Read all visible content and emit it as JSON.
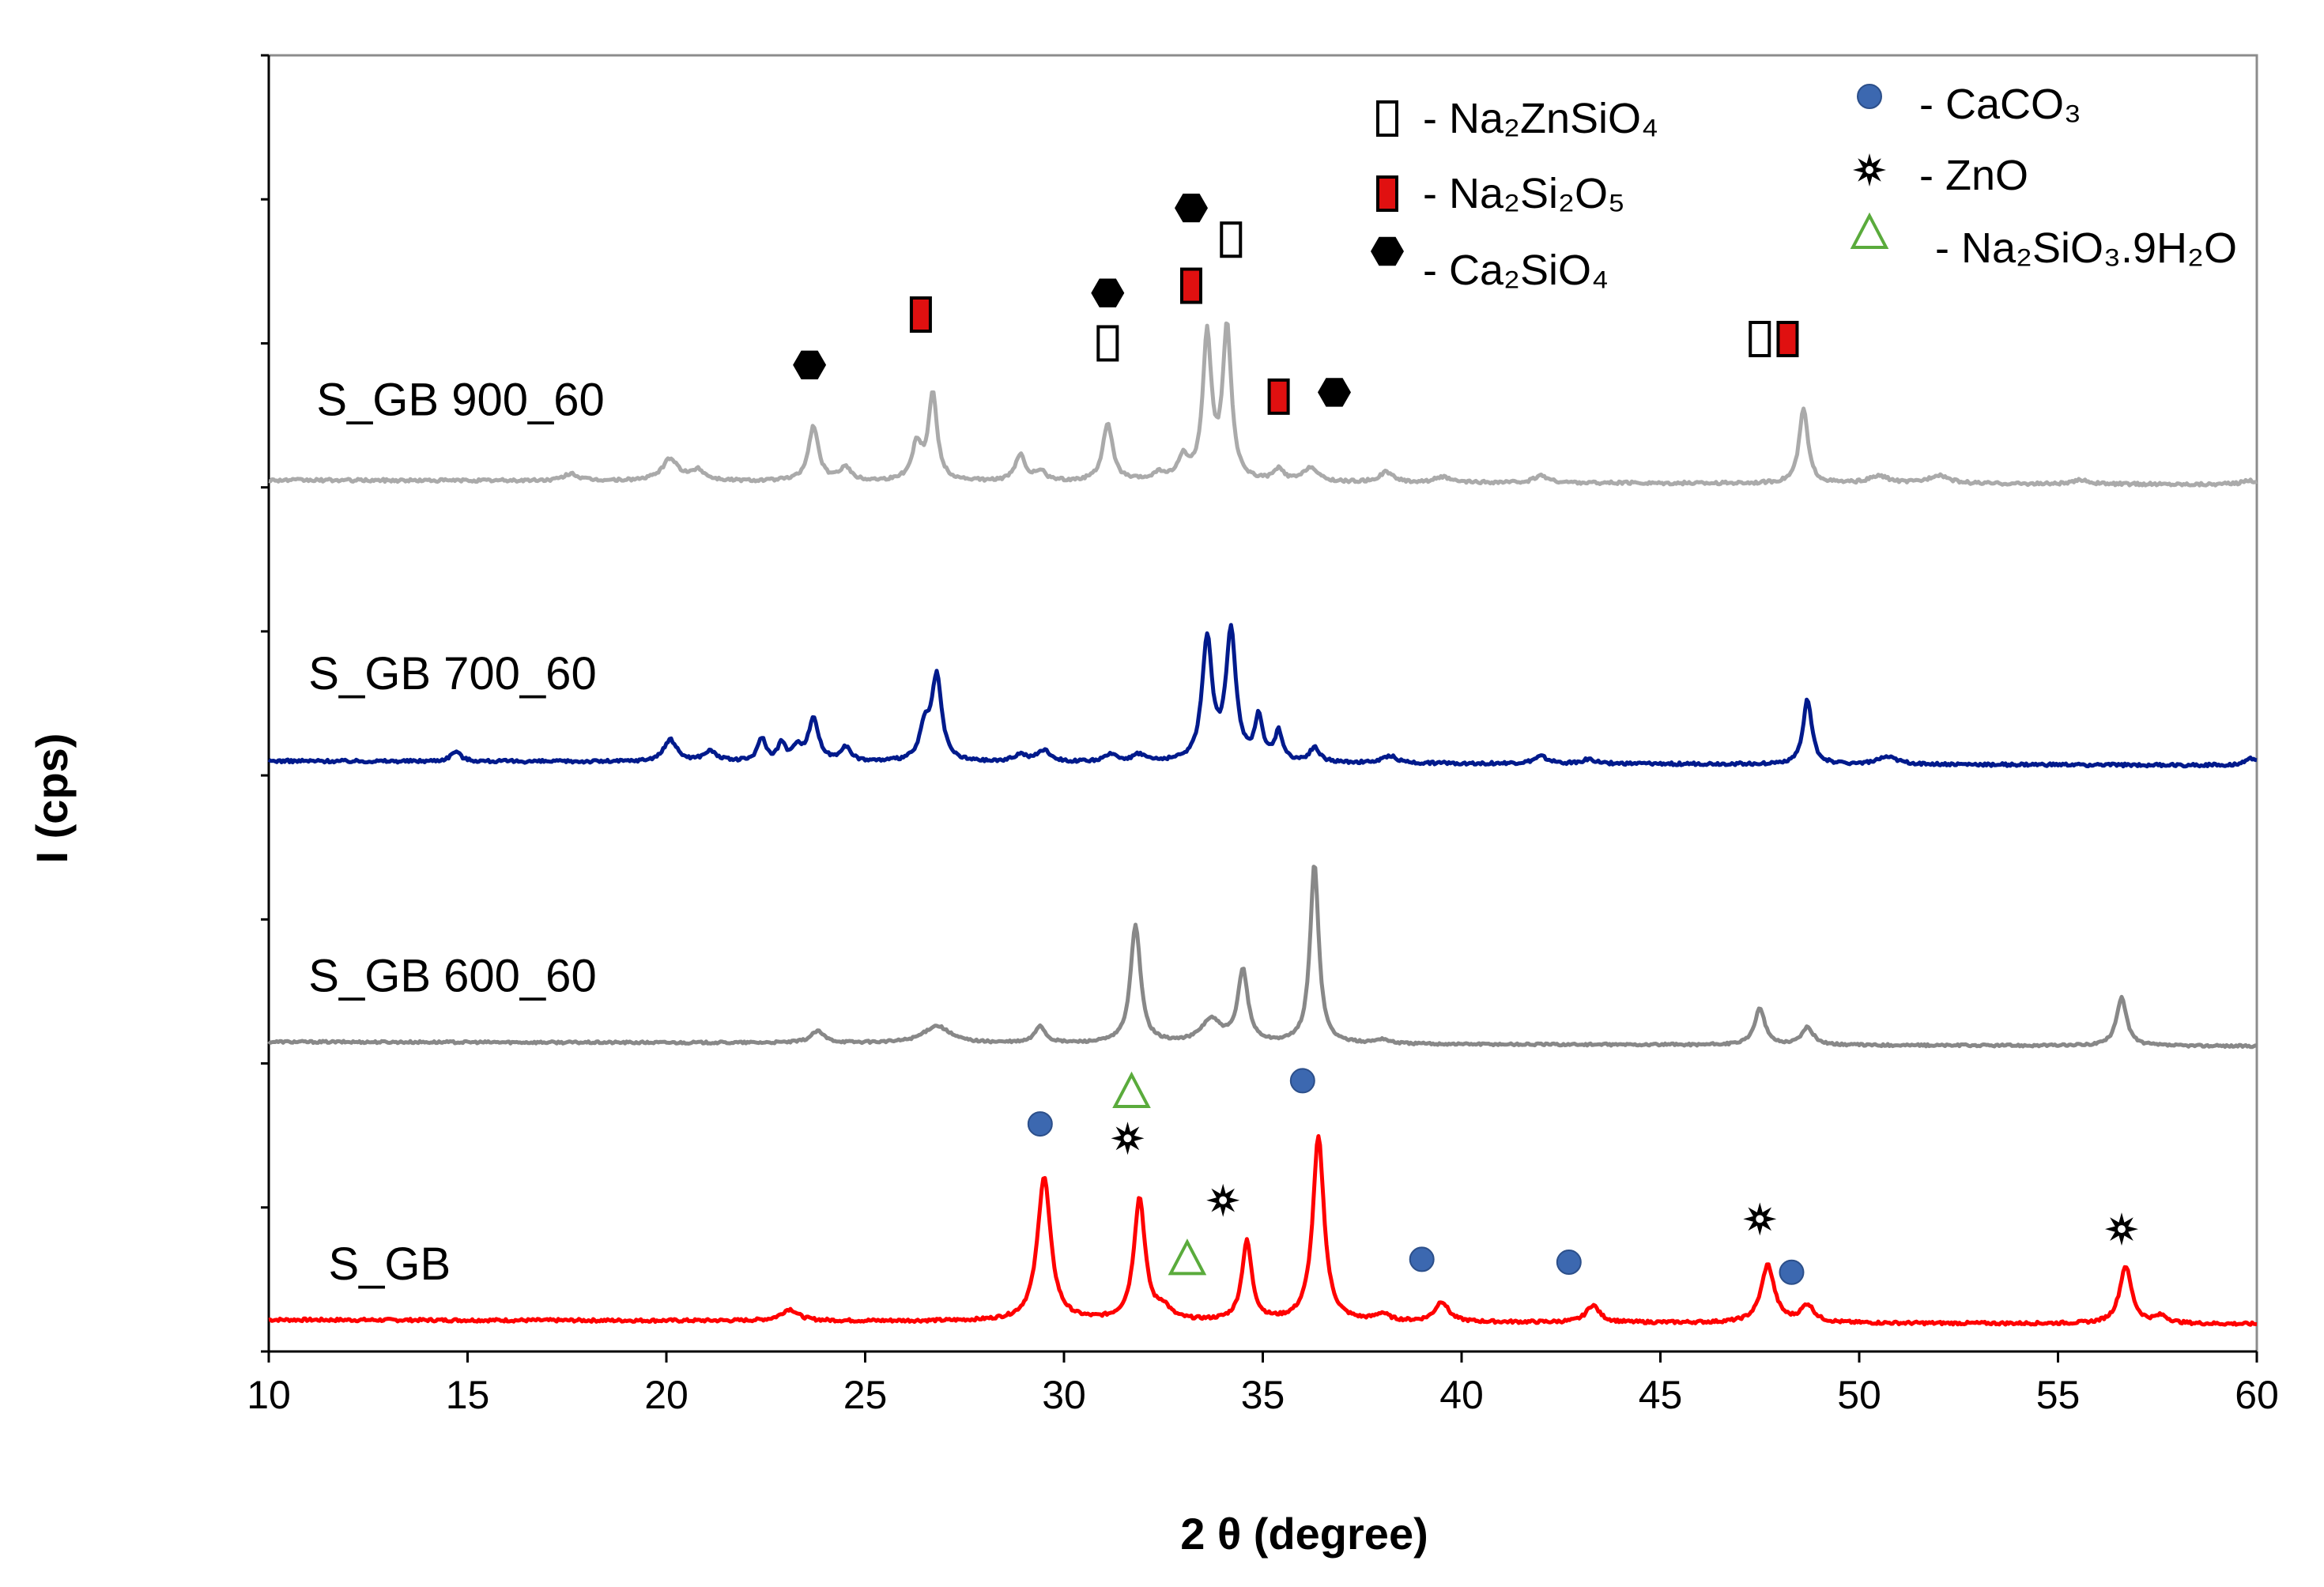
{
  "chart_data": {
    "type": "line",
    "title": "",
    "xlabel": "2 θ (degree)",
    "ylabel": "I (cps)",
    "xlim": [
      10,
      60
    ],
    "xticks": [
      10,
      15,
      20,
      25,
      30,
      35,
      40,
      45,
      50,
      55,
      60
    ],
    "ylim": [
      0,
      9
    ],
    "y_tick_count": 9,
    "y_tick_labels_shown": false,
    "grid": false,
    "legend_position": "top-right",
    "series": [
      {
        "name": "S_GB",
        "color": "#ff0000",
        "baseline": 0.22,
        "noise": 0.02,
        "peaks": [
          [
            23.1,
            0.08,
            0.25
          ],
          [
            29.5,
            1.0,
            0.2
          ],
          [
            31.9,
            0.85,
            0.17
          ],
          [
            32.5,
            0.08,
            0.2
          ],
          [
            34.6,
            0.55,
            0.15
          ],
          [
            36.4,
            1.28,
            0.17
          ],
          [
            38.0,
            0.05,
            0.2
          ],
          [
            39.5,
            0.14,
            0.2
          ],
          [
            43.3,
            0.12,
            0.2
          ],
          [
            47.7,
            0.4,
            0.2
          ],
          [
            48.7,
            0.12,
            0.2
          ],
          [
            56.7,
            0.4,
            0.18
          ],
          [
            57.6,
            0.05,
            0.2
          ]
        ]
      },
      {
        "name": "S_GB 600_60",
        "color": "#888888",
        "baseline": 2.15,
        "noise": 0.015,
        "peaks": [
          [
            23.8,
            0.08,
            0.2
          ],
          [
            26.8,
            0.12,
            0.4
          ],
          [
            29.4,
            0.12,
            0.15
          ],
          [
            31.8,
            0.82,
            0.15
          ],
          [
            33.7,
            0.16,
            0.3
          ],
          [
            34.5,
            0.5,
            0.15
          ],
          [
            36.3,
            1.25,
            0.13
          ],
          [
            38.0,
            0.03,
            0.2
          ],
          [
            47.5,
            0.26,
            0.15
          ],
          [
            48.7,
            0.12,
            0.18
          ],
          [
            56.6,
            0.34,
            0.15
          ]
        ]
      },
      {
        "name": "S_GB 700_60",
        "color": "#001a8c",
        "baseline": 4.1,
        "noise": 0.02,
        "peaks": [
          [
            14.7,
            0.07,
            0.15
          ],
          [
            20.1,
            0.15,
            0.2
          ],
          [
            21.1,
            0.07,
            0.2
          ],
          [
            22.4,
            0.16,
            0.12
          ],
          [
            22.9,
            0.12,
            0.12
          ],
          [
            23.3,
            0.1,
            0.12
          ],
          [
            23.7,
            0.3,
            0.15
          ],
          [
            24.5,
            0.1,
            0.15
          ],
          [
            26.5,
            0.22,
            0.15
          ],
          [
            26.8,
            0.58,
            0.15
          ],
          [
            28.9,
            0.05,
            0.2
          ],
          [
            29.5,
            0.08,
            0.2
          ],
          [
            31.2,
            0.05,
            0.2
          ],
          [
            31.9,
            0.05,
            0.2
          ],
          [
            33.6,
            0.85,
            0.15
          ],
          [
            34.2,
            0.9,
            0.15
          ],
          [
            34.9,
            0.3,
            0.12
          ],
          [
            35.4,
            0.2,
            0.12
          ],
          [
            36.3,
            0.1,
            0.15
          ],
          [
            38.2,
            0.05,
            0.2
          ],
          [
            42.0,
            0.05,
            0.2
          ],
          [
            43.2,
            0.03,
            0.2
          ],
          [
            48.7,
            0.45,
            0.13
          ],
          [
            50.7,
            0.05,
            0.3
          ],
          [
            59.9,
            0.05,
            0.2
          ]
        ]
      },
      {
        "name": "S_GB 900_60",
        "color": "#aaaaaa",
        "baseline": 6.05,
        "noise": 0.02,
        "peaks": [
          [
            17.6,
            0.05,
            0.2
          ],
          [
            20.1,
            0.15,
            0.25
          ],
          [
            20.8,
            0.07,
            0.2
          ],
          [
            23.7,
            0.38,
            0.15
          ],
          [
            24.5,
            0.1,
            0.15
          ],
          [
            26.3,
            0.25,
            0.15
          ],
          [
            26.7,
            0.6,
            0.13
          ],
          [
            28.9,
            0.18,
            0.15
          ],
          [
            29.4,
            0.07,
            0.15
          ],
          [
            31.1,
            0.4,
            0.15
          ],
          [
            32.4,
            0.05,
            0.2
          ],
          [
            33.0,
            0.15,
            0.15
          ],
          [
            33.6,
            1.0,
            0.13
          ],
          [
            34.1,
            1.05,
            0.13
          ],
          [
            35.4,
            0.08,
            0.15
          ],
          [
            36.2,
            0.1,
            0.2
          ],
          [
            38.1,
            0.07,
            0.2
          ],
          [
            39.5,
            0.04,
            0.2
          ],
          [
            42.0,
            0.05,
            0.2
          ],
          [
            48.6,
            0.52,
            0.13
          ],
          [
            50.5,
            0.05,
            0.3
          ],
          [
            52.0,
            0.06,
            0.3
          ],
          [
            55.6,
            0.03,
            0.2
          ],
          [
            59.8,
            0.03,
            0.2
          ]
        ]
      }
    ],
    "series_labels": [
      {
        "text": "S_GB",
        "x": 11.5,
        "y": 0.5
      },
      {
        "text": "S_GB 600_60",
        "x": 11.0,
        "y": 2.5
      },
      {
        "text": "S_GB 700_60",
        "x": 11.0,
        "y": 4.6
      },
      {
        "text": "S_GB 900_60",
        "x": 11.2,
        "y": 6.5
      }
    ],
    "phase_legend": [
      {
        "symbol": "open-rect",
        "label": "- Na₂ZnSiO₄"
      },
      {
        "symbol": "red-rect",
        "label": "- Na₂Si₂O₅"
      },
      {
        "symbol": "hexagon",
        "label": "- Ca₂SiO₄"
      },
      {
        "symbol": "blue-dot",
        "label": "- CaCO₃"
      },
      {
        "symbol": "star",
        "label": "-  ZnO"
      },
      {
        "symbol": "triangle",
        "label": "- Na₂SiO₃.9H₂O"
      }
    ],
    "peak_markers": [
      {
        "phase": "blue-dot",
        "x": 29.4,
        "y": 1.58
      },
      {
        "phase": "blue-dot",
        "x": 36.0,
        "y": 1.88
      },
      {
        "phase": "blue-dot",
        "x": 39.0,
        "y": 0.64
      },
      {
        "phase": "blue-dot",
        "x": 42.7,
        "y": 0.62
      },
      {
        "phase": "blue-dot",
        "x": 48.3,
        "y": 0.55
      },
      {
        "phase": "star",
        "x": 31.6,
        "y": 1.48
      },
      {
        "phase": "star",
        "x": 34.0,
        "y": 1.05
      },
      {
        "phase": "star",
        "x": 47.5,
        "y": 0.92
      },
      {
        "phase": "star",
        "x": 56.6,
        "y": 0.85
      },
      {
        "phase": "triangle",
        "x": 31.7,
        "y": 1.8
      },
      {
        "phase": "triangle",
        "x": 33.1,
        "y": 0.64
      },
      {
        "phase": "hexagon",
        "x": 23.6,
        "y": 6.85
      },
      {
        "phase": "hexagon",
        "x": 31.1,
        "y": 7.35
      },
      {
        "phase": "hexagon",
        "x": 33.2,
        "y": 7.94
      },
      {
        "phase": "hexagon",
        "x": 36.8,
        "y": 6.66
      },
      {
        "phase": "red-rect",
        "x": 26.4,
        "y": 7.2
      },
      {
        "phase": "red-rect",
        "x": 33.2,
        "y": 7.4
      },
      {
        "phase": "red-rect",
        "x": 35.4,
        "y": 6.63
      },
      {
        "phase": "red-rect",
        "x": 48.2,
        "y": 7.03
      },
      {
        "phase": "open-rect",
        "x": 31.1,
        "y": 7.0
      },
      {
        "phase": "open-rect",
        "x": 34.2,
        "y": 7.72
      },
      {
        "phase": "open-rect",
        "x": 47.5,
        "y": 7.03
      }
    ]
  }
}
